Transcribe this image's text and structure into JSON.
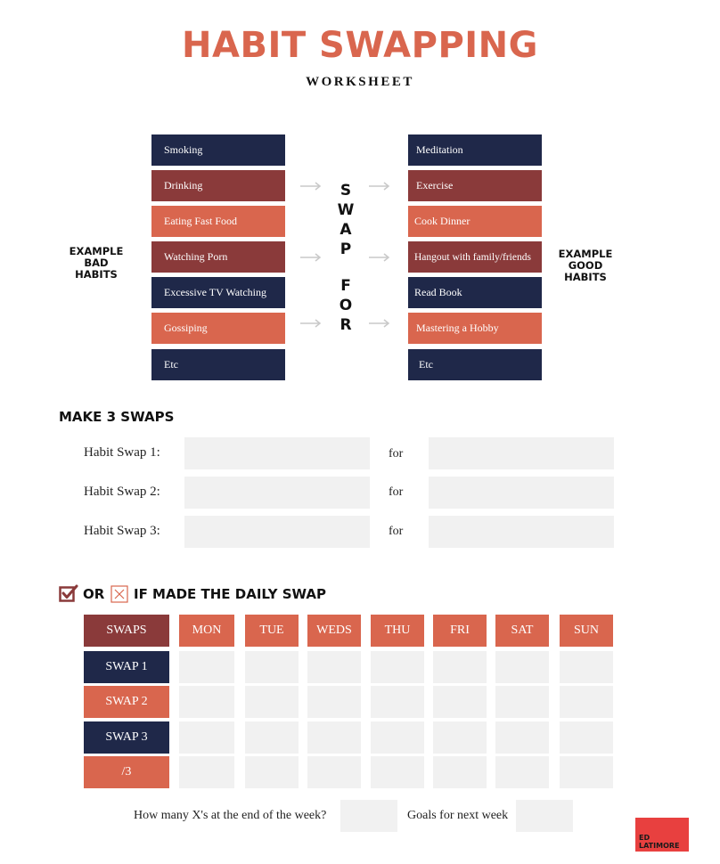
{
  "header": {
    "title": "HABIT SWAPPING",
    "subtitle": "WORKSHEET"
  },
  "examples": {
    "bad_label": [
      "EXAMPLE",
      "BAD",
      "HABITS"
    ],
    "good_label": [
      "EXAMPLE",
      "GOOD",
      "HABITS"
    ],
    "swap_for_letters": [
      "S",
      "W",
      "A",
      "P",
      "F",
      "O",
      "R"
    ],
    "bad_habits": [
      "Smoking",
      "Drinking",
      "Eating Fast Food",
      "Watching Porn",
      "Excessive TV Watching",
      "Gossiping",
      "Etc"
    ],
    "good_habits": [
      "Meditation",
      "Exercise",
      "Cook Dinner",
      "Hangout with family/friends",
      "Read Book",
      "Mastering a Hobby",
      "Etc"
    ]
  },
  "make_swaps": {
    "title": "MAKE 3 SWAPS",
    "rows": [
      {
        "label": "Habit Swap 1:",
        "for": "for"
      },
      {
        "label": "Habit Swap 2:",
        "for": "for"
      },
      {
        "label": "Habit Swap 3:",
        "for": "for"
      }
    ]
  },
  "tracker": {
    "title_or": "OR",
    "title_rest": "IF MADE THE DAILY SWAP",
    "check_icon": "checked-box-icon",
    "x_icon": "x-box-icon",
    "header_label": "SWAPS",
    "days": [
      "MON",
      "TUE",
      "WEDS",
      "THU",
      "FRI",
      "SAT",
      "SUN"
    ],
    "rows": [
      "SWAP 1",
      "SWAP 2",
      "SWAP 3",
      "/3"
    ]
  },
  "footer": {
    "xs_label": "How many X's at the end of the week?",
    "goals_label": "Goals for next week"
  },
  "logo": {
    "line1": "ED",
    "line2": "LATIMORE"
  },
  "colors": {
    "navy": "#1F2849",
    "maroon": "#8A3A3A",
    "coral": "#D9664E",
    "light_gray": "#F1F1F1",
    "logo_red": "#E8403F"
  }
}
